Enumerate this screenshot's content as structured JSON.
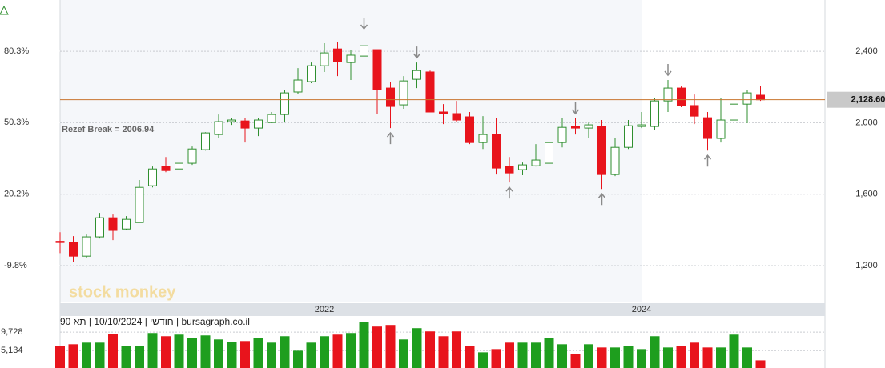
{
  "chart_data": {
    "type": "candlestick",
    "annotation": "Rezef Break = 2006.94",
    "watermark": "stock monkey",
    "footer": "חודשי | 10/10/2024 | תא 90 | bursagraph.co.il",
    "categories": [
      null,
      null,
      null,
      null,
      null,
      null,
      null,
      null,
      null,
      null,
      null,
      null,
      null,
      null,
      null,
      null,
      null,
      null,
      null,
      null,
      "2022",
      null,
      null,
      null,
      null,
      null,
      null,
      null,
      null,
      null,
      null,
      null,
      null,
      null,
      null,
      null,
      null,
      null,
      null,
      null,
      null,
      null,
      null,
      null,
      "2024",
      null,
      null,
      null,
      null,
      null,
      null,
      null,
      null,
      null
    ],
    "open": [
      1336,
      1330,
      1253,
      1361,
      1468,
      1405,
      1441,
      1647,
      1755,
      1741,
      1773,
      1849,
      1934,
      2006,
      2010,
      1970,
      2001,
      2046,
      2172,
      2230,
      2319,
      2413,
      2337,
      2373,
      2409,
      2194,
      2100,
      2243,
      2284,
      2060,
      2051,
      2033,
      1889,
      1934,
      1755,
      1737,
      1759,
      1773,
      1889,
      1979,
      1970,
      1979,
      1710,
      1862,
      1979,
      1979,
      2122,
      2194,
      2096,
      2028,
      1912,
      2015,
      2104,
      2154
    ],
    "high": [
      1387,
      1365,
      1374,
      1495,
      1486,
      1477,
      1679,
      1755,
      1808,
      1813,
      1867,
      1947,
      2046,
      2028,
      2024,
      2028,
      2060,
      2185,
      2306,
      2337,
      2445,
      2454,
      2409,
      2499,
      2409,
      2230,
      2261,
      2337,
      2292,
      2104,
      2122,
      2060,
      2037,
      2024,
      1808,
      1777,
      1880,
      1903,
      2028,
      2024,
      2001,
      2015,
      1916,
      2015,
      2060,
      2140,
      2239,
      2203,
      2158,
      2060,
      2140,
      2122,
      2181,
      2207
    ],
    "low": [
      1270,
      1218,
      1244,
      1352,
      1343,
      1397,
      1441,
      1638,
      1723,
      1737,
      1764,
      1844,
      1916,
      1988,
      1889,
      1925,
      1997,
      2006,
      2163,
      2221,
      2284,
      2261,
      2239,
      2373,
      2051,
      1970,
      2078,
      2194,
      2060,
      1992,
      2006,
      1880,
      1853,
      1710,
      1665,
      1706,
      1755,
      1755,
      1862,
      1934,
      1916,
      1629,
      1701,
      1853,
      1970,
      1961,
      2060,
      2087,
      1992,
      1844,
      1889,
      1880,
      1997,
      2122
    ],
    "close": [
      1332,
      1253,
      1361,
      1468,
      1397,
      1459,
      1638,
      1741,
      1732,
      1773,
      1853,
      1943,
      2006,
      2015,
      1970,
      2015,
      2046,
      2167,
      2239,
      2319,
      2391,
      2342,
      2378,
      2431,
      2185,
      2091,
      2234,
      2292,
      2060,
      2055,
      2015,
      1889,
      1934,
      1746,
      1719,
      1764,
      1791,
      1889,
      1974,
      1970,
      1988,
      1710,
      1862,
      1983,
      1988,
      2122,
      2194,
      2096,
      2037,
      1912,
      2015,
      2104,
      2167,
      2128.6
    ],
    "volume": [
      6300,
      6700,
      7100,
      7100,
      9300,
      6300,
      6300,
      9500,
      8700,
      9100,
      8300,
      8900,
      7900,
      7300,
      7500,
      8300,
      7100,
      8700,
      5100,
      7100,
      8700,
      9100,
      9500,
      12300,
      11100,
      11500,
      7900,
      10700,
      9900,
      8700,
      9900,
      6300,
      4700,
      5500,
      7100,
      7100,
      7100,
      8300,
      6700,
      4300,
      6700,
      5900,
      5900,
      6300,
      5500,
      8700,
      5900,
      6300,
      7100,
      5900,
      5900,
      9100,
      5900,
      2700
    ],
    "up_color": "#2f8f2f",
    "down_color": "#e8141c",
    "volume_up_color": "#1e9e1e",
    "volume_down_color": "#e8141c",
    "last_price": 2128.6,
    "last_price_label": "2,128.60",
    "last_price_color": "#c8752e",
    "signals": [
      {
        "index": 23,
        "direction": "down"
      },
      {
        "index": 25,
        "direction": "up"
      },
      {
        "index": 27,
        "direction": "down"
      },
      {
        "index": 34,
        "direction": "up"
      },
      {
        "index": 39,
        "direction": "down"
      },
      {
        "index": 41,
        "direction": "up"
      },
      {
        "index": 46,
        "direction": "down"
      },
      {
        "index": 49,
        "direction": "up"
      }
    ],
    "ylim": [
      994,
      2687
    ],
    "yticks": [
      {
        "value": 1200,
        "label": "1,200"
      },
      {
        "value": 1600,
        "label": "1,600"
      },
      {
        "value": 2000,
        "label": "2,000"
      },
      {
        "value": 2400,
        "label": "2,400"
      }
    ],
    "y2lim": [
      -25.3,
      101.8
    ],
    "y2ticks": [
      {
        "value": -9.8,
        "label": "-9.8%"
      },
      {
        "value": 20.2,
        "label": "20.2%"
      },
      {
        "value": 50.3,
        "label": "50.3%"
      },
      {
        "value": 80.3,
        "label": "80.3%"
      }
    ],
    "volume_lim": [
      0,
      13728
    ],
    "volume_ticks": [
      {
        "value": 5134,
        "label": "5,134"
      },
      {
        "value": 9728,
        "label": "9,728"
      }
    ],
    "grid": true
  }
}
